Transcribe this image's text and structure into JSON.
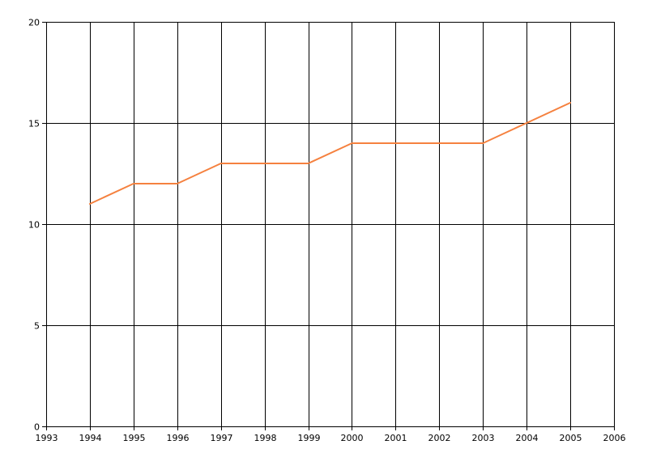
{
  "chart_data": {
    "type": "line",
    "title": "",
    "xlabel": "",
    "ylabel": "",
    "x": [
      1994,
      1995,
      1996,
      1997,
      1998,
      1999,
      2000,
      2001,
      2002,
      2003,
      2004,
      2005
    ],
    "series": [
      {
        "values": [
          11,
          12,
          12,
          13,
          13,
          13,
          14,
          14,
          14,
          14,
          15,
          16
        ],
        "color": "#f5813f"
      }
    ],
    "xlim": [
      1993,
      2006
    ],
    "ylim": [
      0,
      20
    ],
    "x_ticks": [
      1993,
      1994,
      1995,
      1996,
      1997,
      1998,
      1999,
      2000,
      2001,
      2002,
      2003,
      2004,
      2005,
      2006
    ],
    "y_ticks": [
      0,
      5,
      10,
      15,
      20
    ],
    "grid": true,
    "grid_color": "#000000",
    "axis_color": "#000000",
    "legend": "none"
  }
}
